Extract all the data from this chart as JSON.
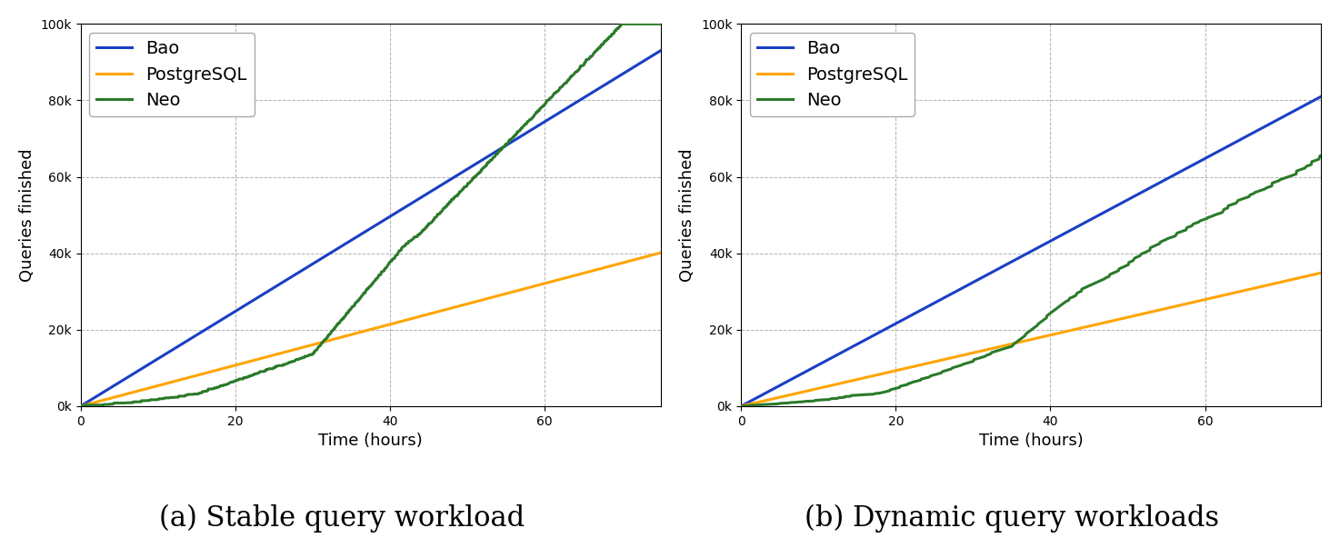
{
  "title_a": "(a) Stable query workload",
  "title_b": "(b) Dynamic query workloads",
  "xlabel": "Time (hours)",
  "ylabel": "Queries finished",
  "xlim": [
    0,
    75
  ],
  "ylim": [
    0,
    100000
  ],
  "yticks": [
    0,
    20000,
    40000,
    60000,
    80000,
    100000
  ],
  "ytick_labels": [
    "0k",
    "20k",
    "40k",
    "60k",
    "80k",
    "100k"
  ],
  "xticks": [
    0,
    20,
    40,
    60
  ],
  "colors": {
    "Bao": "#1a3fc4",
    "PostgreSQL": "#ffa500",
    "Neo": "#2a7a2a"
  },
  "legend_labels": [
    "Bao",
    "PostgreSQL",
    "Neo"
  ],
  "title_fontsize": 22,
  "label_fontsize": 13,
  "legend_fontsize": 14,
  "background_color": "#ffffff",
  "linewidth": 2.2
}
